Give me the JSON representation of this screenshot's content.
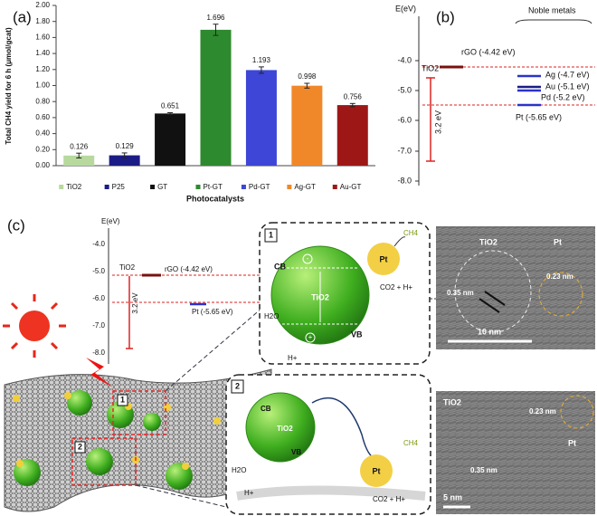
{
  "chart_data": {
    "type": "bar",
    "panel_label": "(a)",
    "y_label": "Total CH4 yield for 6 h (μmol/gcat)",
    "x_label": "Photocatalysts",
    "categories": [
      "TiO2",
      "P25",
      "GT",
      "Pt-GT",
      "Pd-GT",
      "Ag-GT",
      "Au-GT"
    ],
    "values": [
      0.126,
      0.129,
      0.651,
      1.696,
      1.193,
      0.998,
      0.756
    ],
    "errors": [
      0.03,
      0.03,
      0.01,
      0.07,
      0.04,
      0.03,
      0.02
    ],
    "colors": [
      "#b7d99e",
      "#1c1c86",
      "#111111",
      "#2e8a2e",
      "#3d46d6",
      "#f0882a",
      "#9e1717"
    ],
    "ylim": [
      0,
      2
    ],
    "yticks": [
      {
        "value": 0,
        "label": "0.00"
      },
      {
        "value": 0.2,
        "label": "0.20"
      },
      {
        "value": 0.4,
        "label": "0.40"
      },
      {
        "value": 0.6,
        "label": "0.60"
      },
      {
        "value": 0.8,
        "label": "0.80"
      },
      {
        "value": 1,
        "label": "1.00"
      },
      {
        "value": 1.2,
        "label": "1.20"
      },
      {
        "value": 1.4,
        "label": "1.40"
      },
      {
        "value": 1.6,
        "label": "1.60"
      },
      {
        "value": 1.8,
        "label": "1.80"
      },
      {
        "value": 2,
        "label": "2.00"
      }
    ]
  },
  "panel_b": {
    "label": "(b)",
    "axis_title": "E(eV)",
    "ticks": [
      "-4.0",
      "-5.0",
      "-6.0",
      "-7.0",
      "-8.0"
    ],
    "tio2": "TiO2",
    "gap": "3.2 eV",
    "rgo": "rGO (-4.42 eV)",
    "noble_title": "Noble metals",
    "metals": [
      "Ag (-4.7 eV)",
      "Au (-5.1 eV)",
      "Pd (-5.2 eV)",
      "Pt (-5.65 eV)"
    ]
  },
  "panel_c": {
    "label": "(c)",
    "inset": {
      "axis_title": "E(eV)",
      "ticks": [
        "-4.0",
        "-5.0",
        "-6.0",
        "-7.0",
        "-8.0"
      ],
      "tio2": "TiO2",
      "rgo": "rGO (-4.42 eV)",
      "gap": "3.2 eV",
      "pt": "Pt (-5.65 eV)"
    },
    "markers": [
      "1",
      "2"
    ],
    "box1": {
      "number": "1",
      "cb": "CB",
      "vb": "VB",
      "tio2": "TiO2",
      "pt": "Pt",
      "ch4": "CH4",
      "co2": "CO2 + H+",
      "h2o": "H2O",
      "h": "H+",
      "minus": "-",
      "plus": "+"
    },
    "tem1": {
      "tio2": "TiO2",
      "pt": "Pt",
      "d1": "0.35 nm",
      "d2": "0.23 nm",
      "scale": "10 nm"
    },
    "box2": {
      "number": "2",
      "cb": "CB",
      "vb": "VB",
      "tio2": "TiO2",
      "pt": "Pt",
      "ch4": "CH4",
      "co2": "CO2 + H+",
      "h2o": "H2O",
      "h": "H+"
    },
    "tem2": {
      "tio2": "TiO2",
      "d1": "0.23 nm",
      "d2": "0.35 nm",
      "pt": "Pt",
      "scale": "5 nm"
    }
  }
}
